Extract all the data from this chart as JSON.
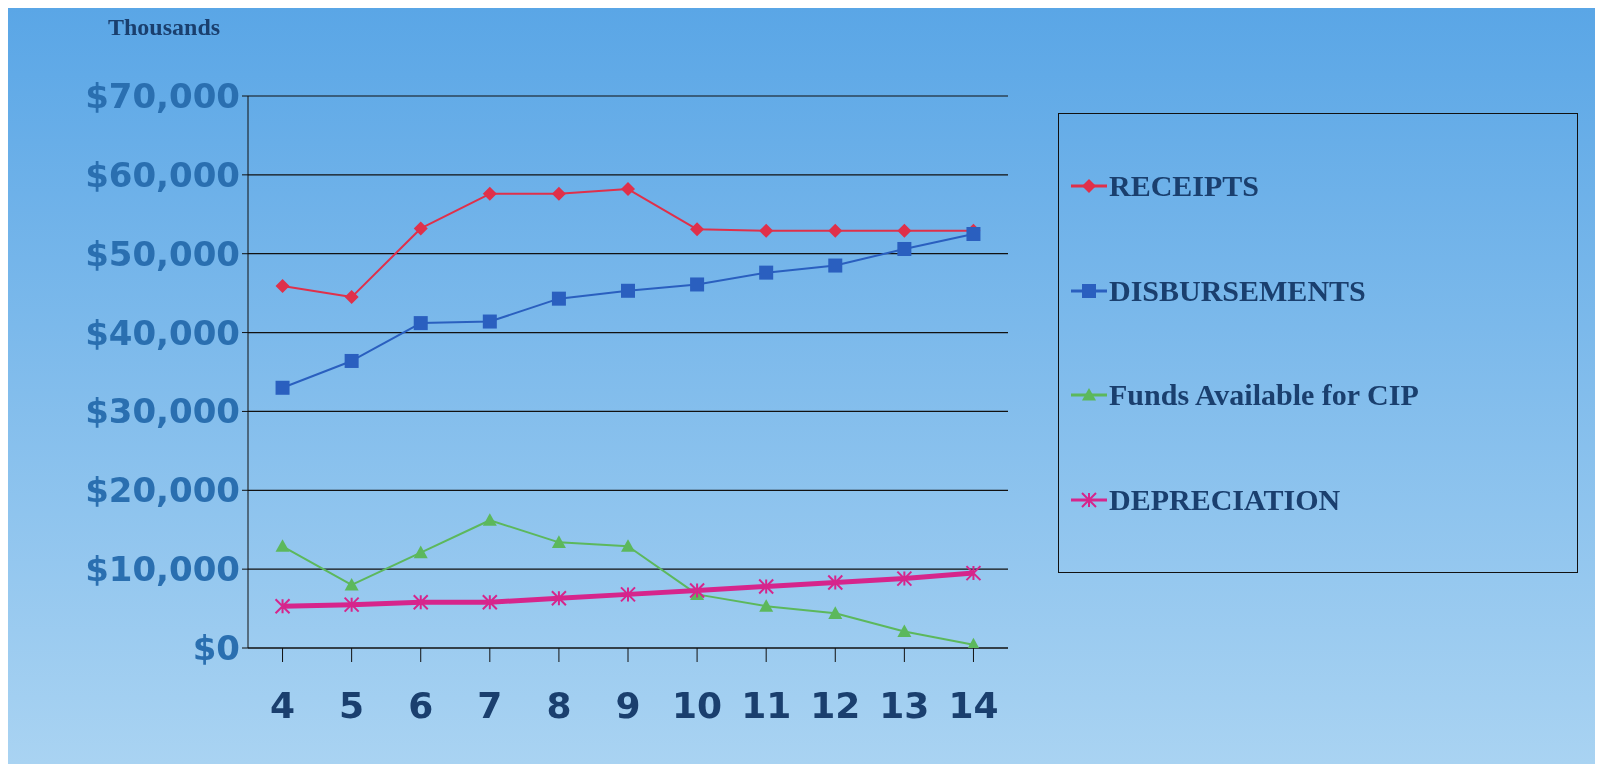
{
  "chart_data": {
    "type": "line",
    "ylabel": "Thousands",
    "categories": [
      "4",
      "5",
      "6",
      "7",
      "8",
      "9",
      "10",
      "11",
      "12",
      "13",
      "14"
    ],
    "series": [
      {
        "name": "RECEIPTS",
        "color": "#e0304a",
        "marker": "diamond",
        "values": [
          45900,
          44500,
          53200,
          57600,
          57600,
          58200,
          53100,
          52900,
          52900,
          52900,
          52900
        ]
      },
      {
        "name": "DISBURSEMENTS",
        "color": "#2a5fbf",
        "marker": "square",
        "values": [
          33000,
          36400,
          41200,
          41400,
          44300,
          45300,
          46100,
          47600,
          48500,
          50600,
          52500
        ]
      },
      {
        "name": "Funds Available for CIP",
        "color": "#5cb85c",
        "marker": "triangle",
        "values": [
          12900,
          8000,
          12100,
          16200,
          13400,
          12900,
          6800,
          5300,
          4400,
          2100,
          400
        ]
      },
      {
        "name": "DEPRECIATION",
        "color": "#d6258c",
        "marker": "cross",
        "values": [
          5300,
          5500,
          5800,
          5800,
          6300,
          6800,
          7300,
          7800,
          8300,
          8800,
          9500
        ]
      }
    ],
    "ylim": [
      0,
      70000
    ],
    "yticks": [
      {
        "value": 0,
        "label": "$0"
      },
      {
        "value": 10000,
        "label": "$10,000"
      },
      {
        "value": 20000,
        "label": "$20,000"
      },
      {
        "value": 30000,
        "label": "$30,000"
      },
      {
        "value": 40000,
        "label": "$40,000"
      },
      {
        "value": 50000,
        "label": "$50,000"
      },
      {
        "value": 60000,
        "label": "$60,000"
      },
      {
        "value": 70000,
        "label": "$70,000"
      }
    ],
    "grid": "y",
    "legend": "right",
    "line_style": "solid"
  }
}
